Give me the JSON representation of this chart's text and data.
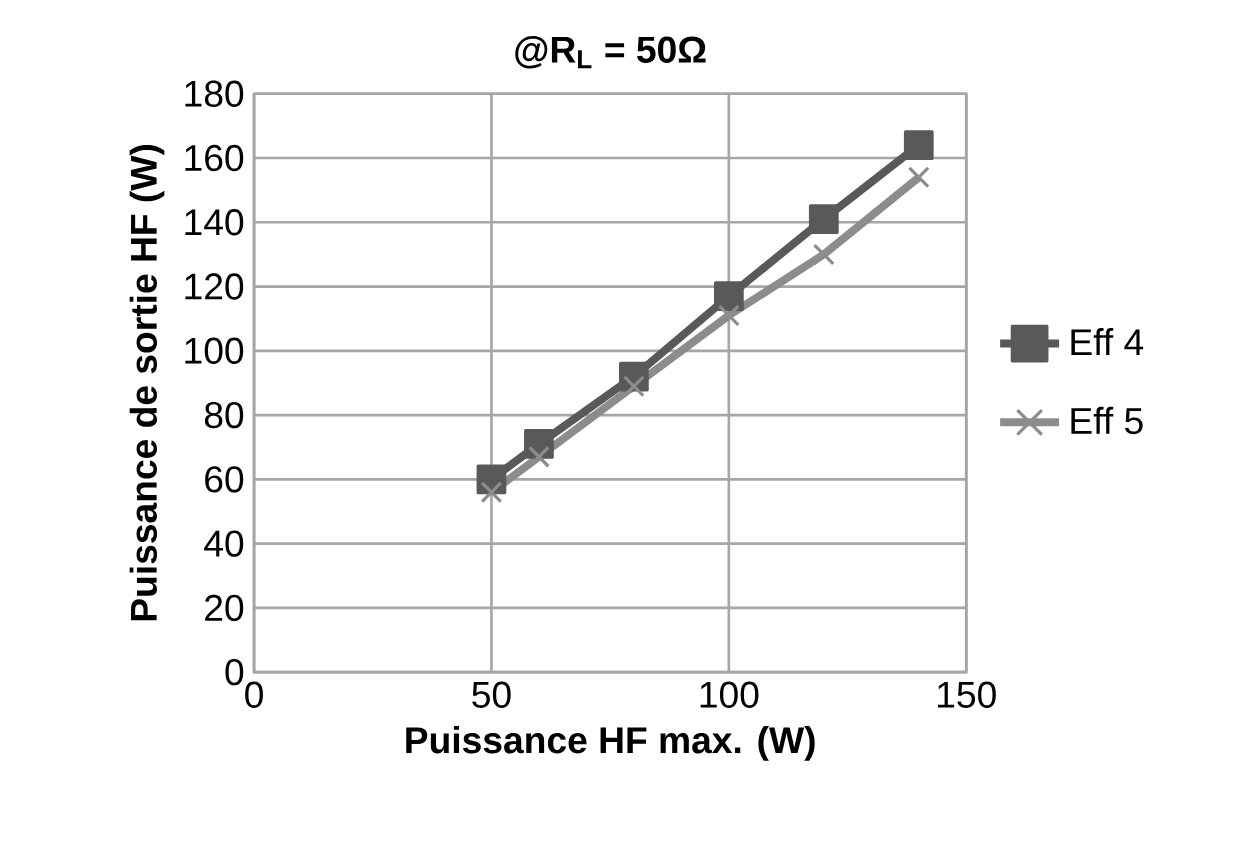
{
  "chart_data": {
    "type": "line",
    "title": "@R$_{L}$ = 50Ω",
    "xlabel": "Puissance HF max. (W)",
    "ylabel": "Puissance de sortie HF (W)",
    "x": [
      50,
      60,
      80,
      100,
      120,
      140
    ],
    "series": [
      {
        "name": "Eff 4",
        "color": "#595959",
        "marker": "square",
        "values": [
          60,
          71,
          92,
          117,
          141,
          164
        ]
      },
      {
        "name": "Eff 5",
        "color": "#8c8c8c",
        "marker": "cross",
        "values": [
          56,
          67,
          89,
          111,
          130,
          154
        ]
      }
    ],
    "xlim": [
      0,
      150
    ],
    "xticks": [
      0,
      50,
      100,
      150
    ],
    "ylim": [
      0,
      180
    ],
    "yticks": [
      0,
      20,
      40,
      60,
      80,
      100,
      120,
      140,
      160,
      180
    ],
    "grid": true,
    "legend": "right",
    "line_style": "solid"
  }
}
